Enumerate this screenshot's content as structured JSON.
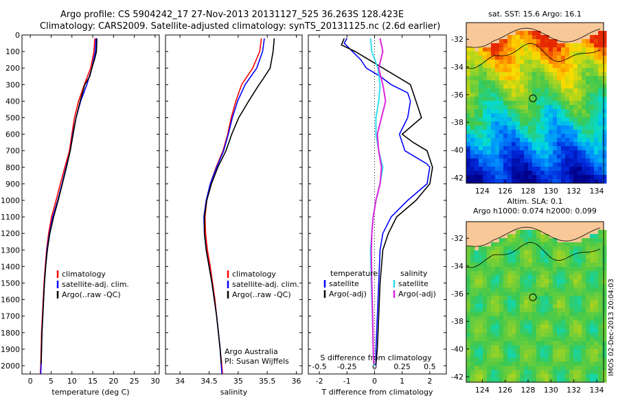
{
  "header": {
    "line1": "Argo profile: CS 5904242_17 27-Nov-2013 20131127_525 36.263S 128.423E",
    "line2": "Climatology: CARS2009. Satellite-adjusted climatology: synTS_20131125.nc (2.6d earlier)"
  },
  "side_label": "IMOS 02-Dec-2013 20:04:03",
  "colors": {
    "climatology": "#ff0000",
    "satellite": "#0000ff",
    "argo": "#000000",
    "satellite_diff_S": "#33ddee",
    "argo_diff_S": "#dd22dd",
    "land": "#f8c898"
  },
  "chart_data": [
    {
      "type": "line",
      "panel": "temperature",
      "xlabel": "temperature (deg C)",
      "ylabel": "",
      "xlim": [
        -2,
        31
      ],
      "ylim": [
        2050,
        0
      ],
      "xticks": [
        0,
        5,
        10,
        15,
        20,
        25,
        30
      ],
      "yticks": [
        0,
        100,
        200,
        300,
        400,
        500,
        600,
        700,
        800,
        900,
        1000,
        1100,
        1200,
        1300,
        1400,
        1500,
        1600,
        1700,
        1800,
        1900,
        2000
      ],
      "legend": [
        "climatology",
        "satellite-adj. clim.",
        "Argo(..raw -QC)"
      ],
      "series": [
        {
          "name": "climatology",
          "color": "#ff0000",
          "points": [
            [
              15.5,
              20
            ],
            [
              15.3,
              100
            ],
            [
              14.5,
              200
            ],
            [
              13.0,
              300
            ],
            [
              11.6,
              400
            ],
            [
              10.6,
              500
            ],
            [
              10.0,
              600
            ],
            [
              9.4,
              700
            ],
            [
              8.3,
              800
            ],
            [
              7.2,
              900
            ],
            [
              6.2,
              1000
            ],
            [
              5.1,
              1100
            ],
            [
              4.4,
              1200
            ],
            [
              3.9,
              1300
            ],
            [
              3.6,
              1400
            ],
            [
              3.3,
              1500
            ],
            [
              3.1,
              1600
            ],
            [
              2.9,
              1700
            ],
            [
              2.7,
              1800
            ],
            [
              2.6,
              1900
            ],
            [
              2.5,
              2000
            ],
            [
              2.4,
              2050
            ]
          ]
        },
        {
          "name": "satellite-adj. clim.",
          "color": "#0000ff",
          "points": [
            [
              15.8,
              20
            ],
            [
              15.6,
              100
            ],
            [
              14.8,
              200
            ],
            [
              13.6,
              300
            ],
            [
              12.1,
              400
            ],
            [
              11.0,
              500
            ],
            [
              10.2,
              600
            ],
            [
              9.6,
              700
            ],
            [
              8.6,
              800
            ],
            [
              7.6,
              900
            ],
            [
              6.6,
              1000
            ],
            [
              5.4,
              1100
            ],
            [
              4.6,
              1200
            ],
            [
              4.0,
              1300
            ],
            [
              3.7,
              1400
            ],
            [
              3.4,
              1500
            ],
            [
              3.2,
              1600
            ],
            [
              3.0,
              1700
            ],
            [
              2.8,
              1800
            ],
            [
              2.7,
              1900
            ],
            [
              2.6,
              2000
            ],
            [
              2.5,
              2050
            ]
          ]
        },
        {
          "name": "Argo(..raw -QC)",
          "color": "#000000",
          "points": [
            [
              16.0,
              20
            ],
            [
              15.9,
              100
            ],
            [
              15.4,
              150
            ],
            [
              14.8,
              200
            ],
            [
              14.3,
              250
            ],
            [
              13.1,
              300
            ],
            [
              12.0,
              400
            ],
            [
              11.0,
              500
            ],
            [
              10.3,
              600
            ],
            [
              9.6,
              700
            ],
            [
              8.7,
              800
            ],
            [
              7.7,
              900
            ],
            [
              6.7,
              1000
            ],
            [
              5.6,
              1100
            ],
            [
              4.7,
              1200
            ],
            [
              4.1,
              1300
            ],
            [
              3.7,
              1400
            ],
            [
              3.4,
              1500
            ],
            [
              3.2,
              1600
            ],
            [
              3.0,
              1700
            ],
            [
              2.8,
              1800
            ],
            [
              2.7,
              1900
            ],
            [
              2.6,
              1990
            ]
          ]
        }
      ]
    },
    {
      "type": "line",
      "panel": "salinity",
      "xlabel": "salinity",
      "xlim": [
        33.75,
        36.1
      ],
      "ylim": [
        2050,
        0
      ],
      "xticks": [
        34,
        34.5,
        35,
        35.5,
        36
      ],
      "legend": [
        "climatology",
        "satellite-adj. clim.",
        "Argo(..raw -QC)"
      ],
      "annotation": [
        "Argo Australia",
        "PI: Susan Wijffels"
      ],
      "series": [
        {
          "name": "climatology",
          "color": "#ff0000",
          "points": [
            [
              35.4,
              20
            ],
            [
              35.37,
              100
            ],
            [
              35.25,
              200
            ],
            [
              35.06,
              300
            ],
            [
              34.96,
              400
            ],
            [
              34.88,
              500
            ],
            [
              34.82,
              600
            ],
            [
              34.74,
              700
            ],
            [
              34.62,
              800
            ],
            [
              34.52,
              900
            ],
            [
              34.46,
              1000
            ],
            [
              34.43,
              1100
            ],
            [
              34.44,
              1200
            ],
            [
              34.47,
              1300
            ],
            [
              34.52,
              1400
            ],
            [
              34.56,
              1500
            ],
            [
              34.6,
              1600
            ],
            [
              34.63,
              1700
            ],
            [
              34.66,
              1800
            ],
            [
              34.69,
              1900
            ],
            [
              34.72,
              2000
            ],
            [
              34.73,
              2050
            ]
          ]
        },
        {
          "name": "satellite-adj. clim.",
          "color": "#0000ff",
          "points": [
            [
              35.45,
              20
            ],
            [
              35.42,
              100
            ],
            [
              35.32,
              200
            ],
            [
              35.12,
              300
            ],
            [
              34.99,
              400
            ],
            [
              34.9,
              500
            ],
            [
              34.83,
              600
            ],
            [
              34.75,
              700
            ],
            [
              34.63,
              800
            ],
            [
              34.52,
              900
            ],
            [
              34.45,
              1000
            ],
            [
              34.41,
              1100
            ],
            [
              34.42,
              1200
            ],
            [
              34.45,
              1300
            ],
            [
              34.5,
              1400
            ],
            [
              34.55,
              1500
            ],
            [
              34.59,
              1600
            ],
            [
              34.63,
              1700
            ],
            [
              34.66,
              1800
            ],
            [
              34.69,
              1900
            ],
            [
              34.71,
              2000
            ],
            [
              34.72,
              2050
            ]
          ]
        },
        {
          "name": "Argo(..raw -QC)",
          "color": "#000000",
          "points": [
            [
              35.62,
              20
            ],
            [
              35.6,
              100
            ],
            [
              35.55,
              200
            ],
            [
              35.42,
              270
            ],
            [
              35.36,
              300
            ],
            [
              35.18,
              400
            ],
            [
              35.01,
              500
            ],
            [
              34.89,
              600
            ],
            [
              34.79,
              700
            ],
            [
              34.65,
              800
            ],
            [
              34.54,
              900
            ],
            [
              34.46,
              1000
            ],
            [
              34.42,
              1100
            ],
            [
              34.42,
              1200
            ],
            [
              34.45,
              1300
            ],
            [
              34.5,
              1400
            ],
            [
              34.55,
              1500
            ],
            [
              34.59,
              1600
            ],
            [
              34.63,
              1700
            ],
            [
              34.66,
              1800
            ],
            [
              34.69,
              1900
            ],
            [
              34.71,
              1990
            ]
          ]
        }
      ]
    },
    {
      "type": "line",
      "panel": "difference",
      "xlabel": "T difference from climatology",
      "xlabel2": "S difference from climatology",
      "xlim": [
        -2.4,
        2.6
      ],
      "ylim": [
        2050,
        0
      ],
      "xticks": [
        -2,
        -1,
        0,
        1,
        2
      ],
      "xticks_S": [
        "-0.5",
        "-0.25",
        "0",
        "0.25",
        "0.5"
      ],
      "legend_left": [
        "temperature",
        "satellite",
        "Argo(-adj)"
      ],
      "legend_right": [
        "salinity",
        "satellite",
        "Argo(-adj)"
      ],
      "series": [
        {
          "name": "temperature satellite",
          "color": "#0000ff",
          "points": [
            [
              -1.0,
              20
            ],
            [
              -1.1,
              50
            ],
            [
              -0.8,
              100
            ],
            [
              -0.5,
              150
            ],
            [
              -0.3,
              200
            ],
            [
              0.2,
              250
            ],
            [
              0.6,
              300
            ],
            [
              1.2,
              350
            ],
            [
              1.3,
              400
            ],
            [
              1.2,
              500
            ],
            [
              0.9,
              600
            ],
            [
              1.1,
              700
            ],
            [
              1.9,
              780
            ],
            [
              2.0,
              800
            ],
            [
              1.9,
              900
            ],
            [
              1.2,
              1000
            ],
            [
              0.6,
              1100
            ],
            [
              0.3,
              1200
            ],
            [
              0.2,
              1300
            ],
            [
              0.15,
              1500
            ],
            [
              0.1,
              1700
            ],
            [
              0.05,
              1900
            ],
            [
              0.05,
              2000
            ]
          ]
        },
        {
          "name": "temperature Argo(-adj)",
          "color": "#000000",
          "points": [
            [
              -1.1,
              20
            ],
            [
              -1.2,
              60
            ],
            [
              -0.7,
              100
            ],
            [
              -0.2,
              150
            ],
            [
              0.3,
              200
            ],
            [
              0.8,
              250
            ],
            [
              1.3,
              300
            ],
            [
              1.5,
              400
            ],
            [
              1.7,
              500
            ],
            [
              1.0,
              600
            ],
            [
              1.4,
              650
            ],
            [
              1.9,
              700
            ],
            [
              2.1,
              800
            ],
            [
              2.0,
              900
            ],
            [
              1.5,
              1000
            ],
            [
              0.8,
              1100
            ],
            [
              0.5,
              1200
            ],
            [
              0.3,
              1300
            ],
            [
              0.2,
              1500
            ],
            [
              0.15,
              1700
            ],
            [
              0.1,
              1900
            ],
            [
              0.05,
              1990
            ]
          ]
        },
        {
          "name": "salinity satellite",
          "color": "#33ddee",
          "points": [
            [
              -0.15,
              20
            ],
            [
              -0.1,
              100
            ],
            [
              0.12,
              200
            ],
            [
              0.2,
              300
            ],
            [
              0.15,
              400
            ],
            [
              0.05,
              500
            ],
            [
              0.05,
              600
            ],
            [
              0.15,
              700
            ],
            [
              0.3,
              800
            ],
            [
              0.2,
              900
            ],
            [
              0.05,
              1000
            ],
            [
              -0.05,
              1100
            ],
            [
              -0.1,
              1200
            ],
            [
              -0.15,
              1300
            ],
            [
              -0.12,
              1500
            ],
            [
              -0.08,
              1700
            ],
            [
              -0.05,
              1900
            ],
            [
              -0.03,
              2000
            ]
          ]
        },
        {
          "name": "salinity Argo(-adj)",
          "color": "#dd22dd",
          "points": [
            [
              0.2,
              20
            ],
            [
              0.3,
              100
            ],
            [
              0.15,
              200
            ],
            [
              0.3,
              300
            ],
            [
              0.4,
              400
            ],
            [
              0.25,
              500
            ],
            [
              0.1,
              600
            ],
            [
              0.15,
              700
            ],
            [
              0.25,
              800
            ],
            [
              0.2,
              900
            ],
            [
              0.05,
              1000
            ],
            [
              -0.05,
              1100
            ],
            [
              -0.1,
              1200
            ],
            [
              -0.12,
              1300
            ],
            [
              -0.1,
              1500
            ],
            [
              -0.07,
              1700
            ],
            [
              -0.05,
              1900
            ],
            [
              -0.03,
              1990
            ]
          ]
        }
      ]
    },
    {
      "type": "heatmap",
      "panel": "sst_map",
      "title": "sat. SST: 15.6  Argo: 16.1",
      "xlim": [
        122.6,
        134.6
      ],
      "ylim": [
        -42.4,
        -30.8
      ],
      "xticks": [
        124,
        126,
        128,
        130,
        132,
        134
      ],
      "yticks": [
        -32,
        -34,
        -36,
        -38,
        -40,
        -42
      ],
      "marker": {
        "lon": 128.423,
        "lat": -36.263
      }
    },
    {
      "type": "heatmap",
      "panel": "sla_map",
      "title1": "Altim. SLA: 0.1",
      "title2": "Argo h1000: 0.074 h2000: 0.099",
      "xlim": [
        122.6,
        134.6
      ],
      "ylim": [
        -42.4,
        -30.8
      ],
      "xticks": [
        124,
        126,
        128,
        130,
        132,
        134
      ],
      "yticks": [
        -32,
        -34,
        -36,
        -38,
        -40,
        -42
      ],
      "marker": {
        "lon": 128.423,
        "lat": -36.263
      }
    }
  ]
}
